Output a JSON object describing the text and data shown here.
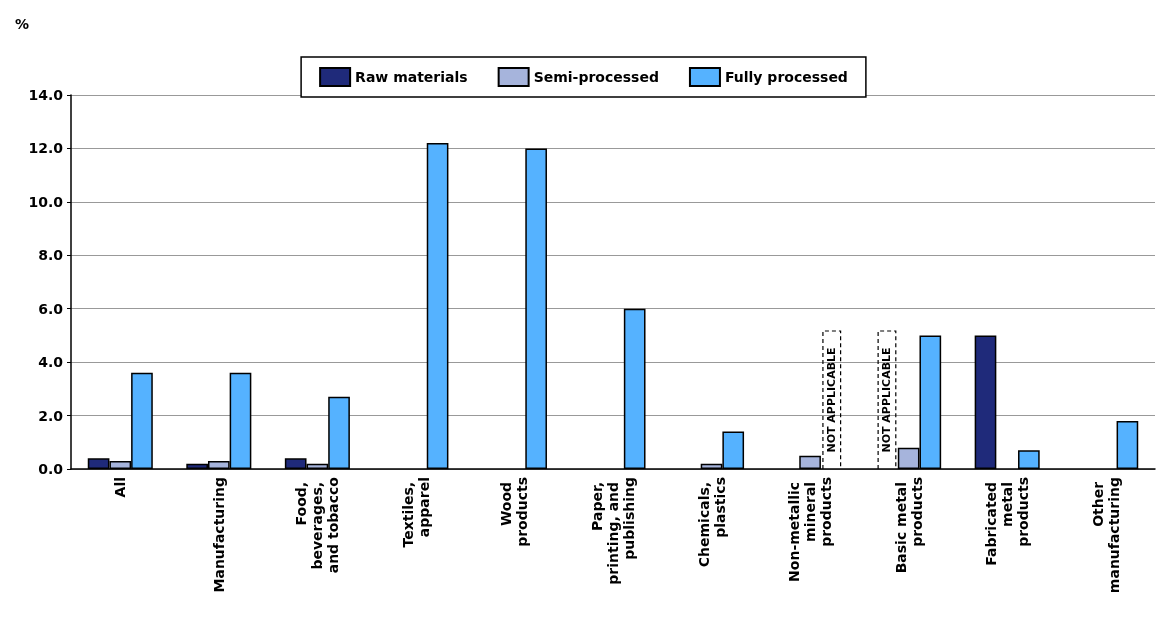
{
  "chart_data": {
    "type": "bar",
    "ylabel": "%",
    "categories": [
      "All",
      "Manufacturing",
      "Food, beverages, and tobacco",
      "Textiles, apparel",
      "Wood products",
      "Paper, printing, and publishing",
      "Chemicals, plastics",
      "Non-metallic mineral products",
      "Basic metal products",
      "Fabricated metal products",
      "Other manufacturing"
    ],
    "series": [
      {
        "name": "Raw materials",
        "color": "#1f2a7a",
        "values": [
          0.4,
          0.2,
          0.4,
          null,
          null,
          null,
          null,
          null,
          null,
          5.0,
          null
        ]
      },
      {
        "name": "Semi-processed",
        "color": "#a6b4dc",
        "values": [
          0.3,
          0.3,
          0.2,
          null,
          null,
          null,
          0.2,
          0.5,
          0.8,
          null,
          null
        ]
      },
      {
        "name": "Fully processed",
        "color": "#55b2ff",
        "values": [
          3.6,
          3.6,
          2.7,
          12.2,
          12.0,
          6.0,
          1.4,
          null,
          5.0,
          0.7,
          1.8
        ]
      }
    ],
    "ylim": [
      0,
      14
    ],
    "yticks": [
      {
        "value": 0,
        "label": "0.0"
      },
      {
        "value": 2,
        "label": "2.0"
      },
      {
        "value": 4,
        "label": "4.0"
      },
      {
        "value": 6,
        "label": "6.0"
      },
      {
        "value": 8,
        "label": "8.0"
      },
      {
        "value": 10,
        "label": "10.0"
      },
      {
        "value": 12,
        "label": "12.0"
      },
      {
        "value": 14,
        "label": "14.0"
      }
    ],
    "annotations": [
      {
        "text": "NOT APPLICABLE",
        "x": "Non-metallic mineral products",
        "y": 0
      },
      {
        "text": "NOT APPLICABLE",
        "x": "Basic metal products",
        "y": 0
      }
    ],
    "grid": "y",
    "legend": "top"
  }
}
